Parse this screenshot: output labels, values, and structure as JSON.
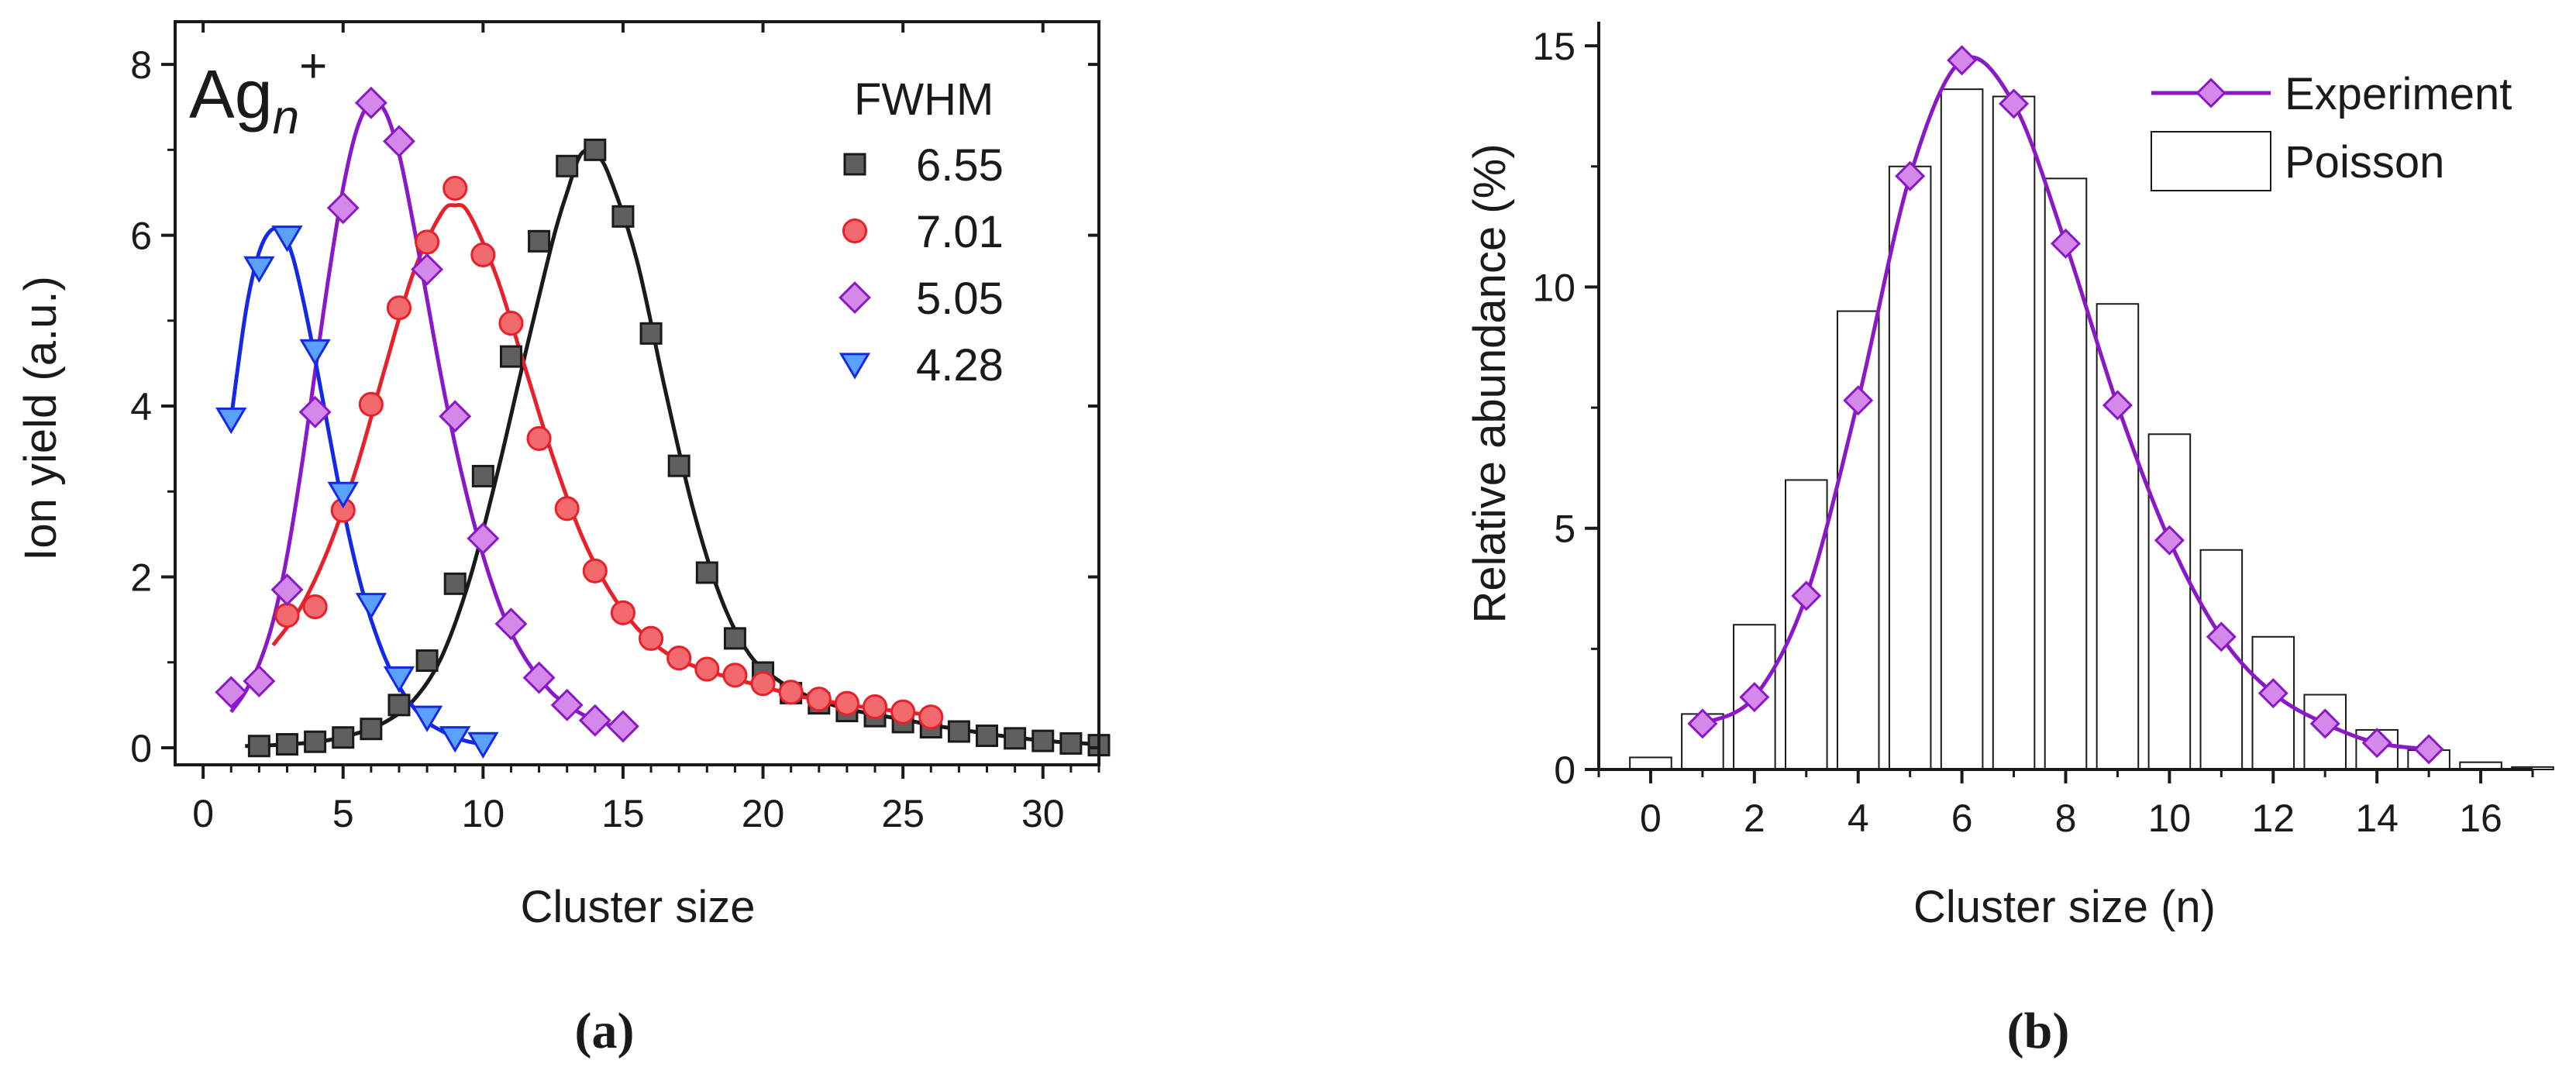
{
  "chart_data": [
    {
      "panel": "a",
      "type": "scatter",
      "ion_label": {
        "base": "Ag",
        "sub": "n",
        "sup": "+"
      },
      "legend_title": "FWHM",
      "xlabel": "Cluster size",
      "ylabel": "Ion yield (a.u.)",
      "xlim": [
        -1,
        32
      ],
      "ylim": [
        -0.2,
        8.5
      ],
      "x_ticks": [
        0,
        5,
        10,
        15,
        20,
        25,
        30
      ],
      "y_ticks": [
        0,
        2,
        4,
        6,
        8
      ],
      "x_tick_labels": [
        "0",
        "5",
        "10",
        "15",
        "20",
        "25",
        "30"
      ],
      "y_tick_labels": [
        "0",
        "2",
        "4",
        "6",
        "8"
      ],
      "caption": "(a)",
      "series": [
        {
          "name": "6.55",
          "marker": "square",
          "color": "#1a1a1a",
          "fill": "#5f5f5f",
          "x": [
            2,
            3,
            4,
            5,
            6,
            7,
            8,
            9,
            10,
            11,
            12,
            13,
            14,
            15,
            16,
            17,
            18,
            19,
            20,
            21,
            22,
            23,
            24,
            25,
            26,
            27,
            28,
            29,
            30,
            31,
            32
          ],
          "y": [
            0.02,
            0.04,
            0.07,
            0.12,
            0.22,
            0.5,
            1.02,
            1.92,
            3.18,
            4.58,
            5.93,
            6.81,
            7.0,
            6.22,
            4.85,
            3.3,
            2.05,
            1.28,
            0.88,
            0.64,
            0.52,
            0.43,
            0.37,
            0.3,
            0.24,
            0.19,
            0.14,
            0.11,
            0.08,
            0.05,
            0.03
          ],
          "fit_x": [
            1.5,
            2.5,
            3.5,
            4.5,
            5.5,
            6.5,
            7.5,
            8.5,
            9.5,
            10.5,
            11.5,
            12.5,
            13.0,
            13.5,
            14.0,
            14.5,
            15.5,
            16.5,
            17.5,
            18.5,
            19.5,
            20.5,
            21.5,
            22.5,
            23.5,
            24.5,
            25.5,
            26.5,
            27.5,
            28.5,
            29.5,
            30.5,
            31.5,
            32.0
          ],
          "fit_y": [
            0.02,
            0.03,
            0.05,
            0.09,
            0.17,
            0.3,
            0.55,
            1.05,
            1.95,
            3.2,
            4.6,
            5.95,
            6.5,
            6.95,
            6.95,
            6.7,
            5.7,
            4.2,
            2.8,
            1.75,
            1.1,
            0.8,
            0.62,
            0.5,
            0.42,
            0.36,
            0.3,
            0.24,
            0.19,
            0.14,
            0.1,
            0.07,
            0.05,
            0.04
          ]
        },
        {
          "name": "7.01",
          "marker": "circle",
          "color": "#e8202a",
          "fill": "#f26a6d",
          "x": [
            3,
            4,
            5,
            6,
            7,
            8,
            9,
            10,
            11,
            12,
            13,
            14,
            15,
            16,
            17,
            18,
            19,
            20,
            21,
            22,
            23,
            24,
            25,
            26
          ],
          "y": [
            1.55,
            1.65,
            2.78,
            4.02,
            5.15,
            5.92,
            6.55,
            5.77,
            4.97,
            3.62,
            2.8,
            2.07,
            1.58,
            1.28,
            1.05,
            0.92,
            0.85,
            0.75,
            0.65,
            0.57,
            0.52,
            0.48,
            0.42,
            0.36
          ],
          "fit_x": [
            2.5,
            3.5,
            4.5,
            5.5,
            6.5,
            7.5,
            8.5,
            9.0,
            9.5,
            10.5,
            11.5,
            12.5,
            13.5,
            14.5,
            15.5,
            16.5,
            17.5,
            18.5,
            19.5,
            20.5,
            21.5,
            22.5,
            23.5,
            24.5,
            25.5,
            26.0
          ],
          "fit_y": [
            1.2,
            1.65,
            2.35,
            3.3,
            4.45,
            5.55,
            6.25,
            6.35,
            6.25,
            5.5,
            4.45,
            3.4,
            2.5,
            1.85,
            1.4,
            1.12,
            0.96,
            0.85,
            0.76,
            0.67,
            0.59,
            0.53,
            0.48,
            0.44,
            0.4,
            0.38
          ]
        },
        {
          "name": "5.05",
          "marker": "diamond",
          "color": "#8b18c8",
          "fill": "#d488ea",
          "x": [
            1,
            2,
            3,
            4,
            5,
            6,
            7,
            8,
            9,
            10,
            11,
            12,
            13,
            14,
            15
          ],
          "y": [
            0.65,
            0.78,
            1.85,
            3.93,
            6.32,
            7.55,
            7.1,
            5.6,
            3.88,
            2.45,
            1.45,
            0.82,
            0.5,
            0.32,
            0.25
          ],
          "fit_x": [
            1.0,
            1.5,
            2.0,
            2.5,
            3.0,
            3.5,
            4.0,
            4.5,
            5.0,
            5.5,
            6.0,
            6.5,
            7.0,
            7.5,
            8.0,
            8.5,
            9.0,
            9.5,
            10.0,
            10.5,
            11.0,
            11.5,
            12.0,
            12.5,
            13.0,
            13.5,
            14.0,
            14.5,
            15.0
          ],
          "fit_y": [
            0.42,
            0.65,
            0.98,
            1.48,
            2.25,
            3.25,
            4.4,
            5.55,
            6.55,
            7.25,
            7.55,
            7.45,
            6.95,
            6.15,
            5.25,
            4.35,
            3.55,
            2.85,
            2.25,
            1.75,
            1.35,
            1.05,
            0.82,
            0.63,
            0.5,
            0.4,
            0.32,
            0.27,
            0.24
          ]
        },
        {
          "name": "4.28",
          "marker": "triangle-down",
          "color": "#1428e8",
          "fill": "#5aa0ff",
          "x": [
            1,
            2,
            3,
            4,
            5,
            6,
            7,
            8,
            9,
            10
          ],
          "y": [
            3.85,
            5.62,
            5.98,
            4.65,
            2.98,
            1.68,
            0.82,
            0.36,
            0.12,
            0.05
          ],
          "fit_x": [
            1.0,
            1.3,
            1.6,
            2.0,
            2.4,
            2.8,
            3.2,
            3.6,
            4.0,
            4.4,
            4.8,
            5.2,
            5.6,
            6.0,
            6.5,
            7.0,
            7.5,
            8.0,
            8.5,
            9.0,
            9.5,
            10.0
          ],
          "fit_y": [
            3.85,
            4.6,
            5.25,
            5.8,
            6.05,
            6.05,
            5.75,
            5.2,
            4.55,
            3.85,
            3.15,
            2.5,
            1.95,
            1.5,
            1.05,
            0.72,
            0.48,
            0.3,
            0.2,
            0.12,
            0.07,
            0.04
          ]
        }
      ]
    },
    {
      "panel": "b",
      "type": "bar+line",
      "xlabel": "Cluster size (n)",
      "ylabel": "Relative abundance (%)",
      "xlim": [
        -1,
        17
      ],
      "ylim": [
        0,
        15.5
      ],
      "x_ticks": [
        0,
        2,
        4,
        6,
        8,
        10,
        12,
        14,
        16
      ],
      "y_ticks": [
        0,
        5,
        10,
        15
      ],
      "x_tick_labels": [
        "0",
        "2",
        "4",
        "6",
        "8",
        "10",
        "12",
        "14",
        "16"
      ],
      "y_tick_labels": [
        "0",
        "5",
        "10",
        "15"
      ],
      "caption": "(b)",
      "legend": [
        "Experiment",
        "Poisson"
      ],
      "series": [
        {
          "name": "Experiment",
          "type": "line",
          "marker": "diamond",
          "color": "#8b18c8",
          "fill": "#d488ea",
          "x": [
            1,
            2,
            3,
            4,
            5,
            6,
            7,
            8,
            9,
            10,
            11,
            12,
            13,
            14,
            15
          ],
          "y": [
            0.95,
            1.5,
            3.6,
            7.65,
            12.3,
            14.7,
            13.8,
            10.9,
            7.55,
            4.75,
            2.75,
            1.58,
            0.95,
            0.55,
            0.42
          ]
        },
        {
          "name": "Poisson",
          "type": "bar",
          "color": "#1a1a1a",
          "fill": "#ffffff",
          "x": [
            0,
            1,
            2,
            3,
            4,
            5,
            6,
            7,
            8,
            9,
            10,
            11,
            12,
            13,
            14,
            15,
            16,
            17
          ],
          "y": [
            0.25,
            1.15,
            3.0,
            6.0,
            9.5,
            12.5,
            14.1,
            13.95,
            12.25,
            9.65,
            6.95,
            4.55,
            2.75,
            1.55,
            0.82,
            0.4,
            0.15,
            0.05
          ]
        }
      ]
    }
  ]
}
